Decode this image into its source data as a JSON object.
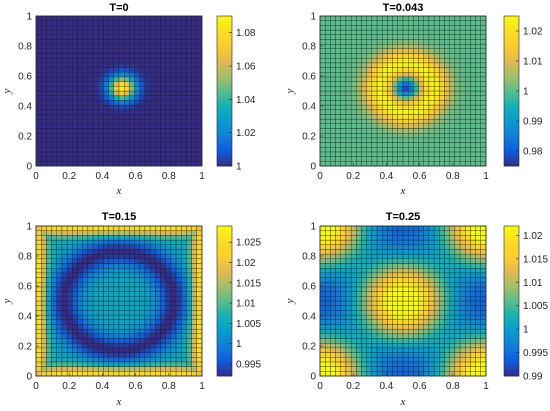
{
  "figure": {
    "background": "#ffffff",
    "grid_cells_per_side": 32,
    "mesh_line_color": "#1b1b1b",
    "colormap": "parula"
  },
  "chart_data": [
    {
      "type": "heatmap",
      "title": "T=0",
      "xlabel": "x",
      "ylabel": "y",
      "xlim": [
        0,
        1
      ],
      "ylim": [
        0,
        1
      ],
      "xticks": [
        "0",
        "0.2",
        "0.4",
        "0.6",
        "0.8",
        "1"
      ],
      "yticks": [
        "0",
        "0.2",
        "0.4",
        "0.6",
        "0.8",
        "1"
      ],
      "clim": [
        1,
        1.09
      ],
      "colorbar_ticks": [
        "1",
        "1.02",
        "1.04",
        "1.06",
        "1.08"
      ],
      "colorbar_values": [
        1,
        1.02,
        1.04,
        1.06,
        1.08
      ],
      "field": {
        "kind": "gaussian",
        "center": [
          0.52,
          0.52
        ],
        "sigma": 0.055,
        "base": 1.0,
        "peak": 1.09
      }
    },
    {
      "type": "heatmap",
      "title": "T=0.043",
      "xlabel": "x",
      "ylabel": "y",
      "xlim": [
        0,
        1
      ],
      "ylim": [
        0,
        1
      ],
      "xticks": [
        "0",
        "0.2",
        "0.4",
        "0.6",
        "0.8",
        "1"
      ],
      "yticks": [
        "0",
        "0.2",
        "0.4",
        "0.6",
        "0.8",
        "1"
      ],
      "clim": [
        0.975,
        1.025
      ],
      "colorbar_ticks": [
        "0.98",
        "0.99",
        "1",
        "1.01",
        "1.02"
      ],
      "colorbar_values": [
        0.98,
        0.99,
        1,
        1.01,
        1.02
      ],
      "field": {
        "kind": "ring",
        "center": [
          0.52,
          0.52
        ],
        "ring_radius": 0.16,
        "ring_width": 0.07,
        "base": 1.0,
        "ring_peak": 1.024,
        "dip_depth": 0.024,
        "dip_sigma": 0.05
      }
    },
    {
      "type": "heatmap",
      "title": "T=0.15",
      "xlabel": "x",
      "ylabel": "y",
      "xlim": [
        0,
        1
      ],
      "ylim": [
        0,
        1
      ],
      "xticks": [
        "0",
        "0.2",
        "0.4",
        "0.6",
        "0.8",
        "1"
      ],
      "yticks": [
        "0",
        "0.2",
        "0.4",
        "0.6",
        "0.8",
        "1"
      ],
      "clim": [
        0.992,
        1.029
      ],
      "colorbar_ticks": [
        "0.995",
        "1",
        "1.005",
        "1.01",
        "1.015",
        "1.02",
        "1.025"
      ],
      "colorbar_values": [
        0.995,
        1,
        1.005,
        1.01,
        1.015,
        1.02,
        1.025
      ],
      "field": {
        "kind": "wave",
        "center": [
          0.5,
          0.5
        ],
        "ring_radius": 0.33,
        "ring_width": 0.07,
        "base": 1.005,
        "ring_low": 0.992,
        "edge_high": 1.027
      }
    },
    {
      "type": "heatmap",
      "title": "T=0.25",
      "xlabel": "x",
      "ylabel": "y",
      "xlim": [
        0,
        1
      ],
      "ylim": [
        0,
        1
      ],
      "xticks": [
        "0",
        "0.2",
        "0.4",
        "0.6",
        "0.8",
        "1"
      ],
      "yticks": [
        "0",
        "0.2",
        "0.4",
        "0.6",
        "0.8",
        "1"
      ],
      "clim": [
        0.99,
        1.022
      ],
      "colorbar_ticks": [
        "0.99",
        "0.995",
        "1",
        "1.005",
        "1.01",
        "1.015",
        "1.02"
      ],
      "colorbar_values": [
        0.99,
        0.995,
        1,
        1.005,
        1.01,
        1.015,
        1.02
      ],
      "field": {
        "kind": "interference",
        "base": 1.006,
        "amp_a": 0.016,
        "amp_b": 0.004
      }
    }
  ]
}
